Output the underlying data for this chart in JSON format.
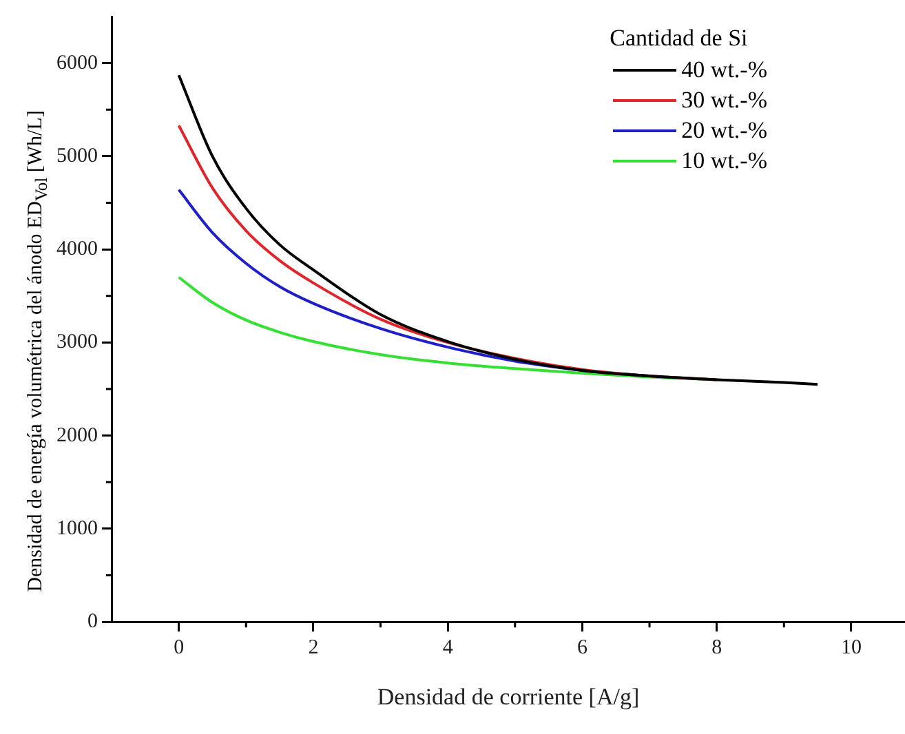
{
  "chart_data": {
    "type": "line",
    "xlabel": "Densidad de corriente [A/g]",
    "ylabel": "Densidad de energía volumétrica del ánodo ED$_{Vol}$  [Wh/L]",
    "legend_title": "Cantidad de Si",
    "legend": "top right",
    "grid": false,
    "marker": "none",
    "line_style": "solid",
    "x": [
      0,
      0.5,
      1,
      1.5,
      2,
      3,
      4,
      5,
      6,
      7,
      8,
      9,
      9.5
    ],
    "xlim": [
      -1,
      10.8
    ],
    "xticks": [
      0,
      2,
      4,
      6,
      8,
      10
    ],
    "ylim": [
      0,
      6500
    ],
    "yticks": [
      0,
      1000,
      2000,
      3000,
      4000,
      5000,
      6000
    ],
    "series": [
      {
        "name": "40 wt.-%",
        "color": "#000000",
        "values": [
          5870,
          5000,
          4440,
          4050,
          3780,
          3300,
          3010,
          2820,
          2700,
          2640,
          2600,
          2570,
          2550
        ]
      },
      {
        "name": "30 wt.-%",
        "color": "#e0262b",
        "values": [
          5330,
          4660,
          4200,
          3880,
          3640,
          3250,
          3000,
          2830,
          2710,
          2640,
          2600,
          null,
          null
        ]
      },
      {
        "name": "20 wt.-%",
        "color": "#1f1fc8",
        "values": [
          4640,
          4180,
          3850,
          3600,
          3420,
          3150,
          2950,
          2800,
          2700,
          2640,
          null,
          null,
          null
        ]
      },
      {
        "name": "10 wt.-%",
        "color": "#33e033",
        "values": [
          3700,
          3430,
          3240,
          3110,
          3010,
          2870,
          2780,
          2720,
          2670,
          2630,
          2600,
          null,
          null
        ]
      }
    ]
  }
}
